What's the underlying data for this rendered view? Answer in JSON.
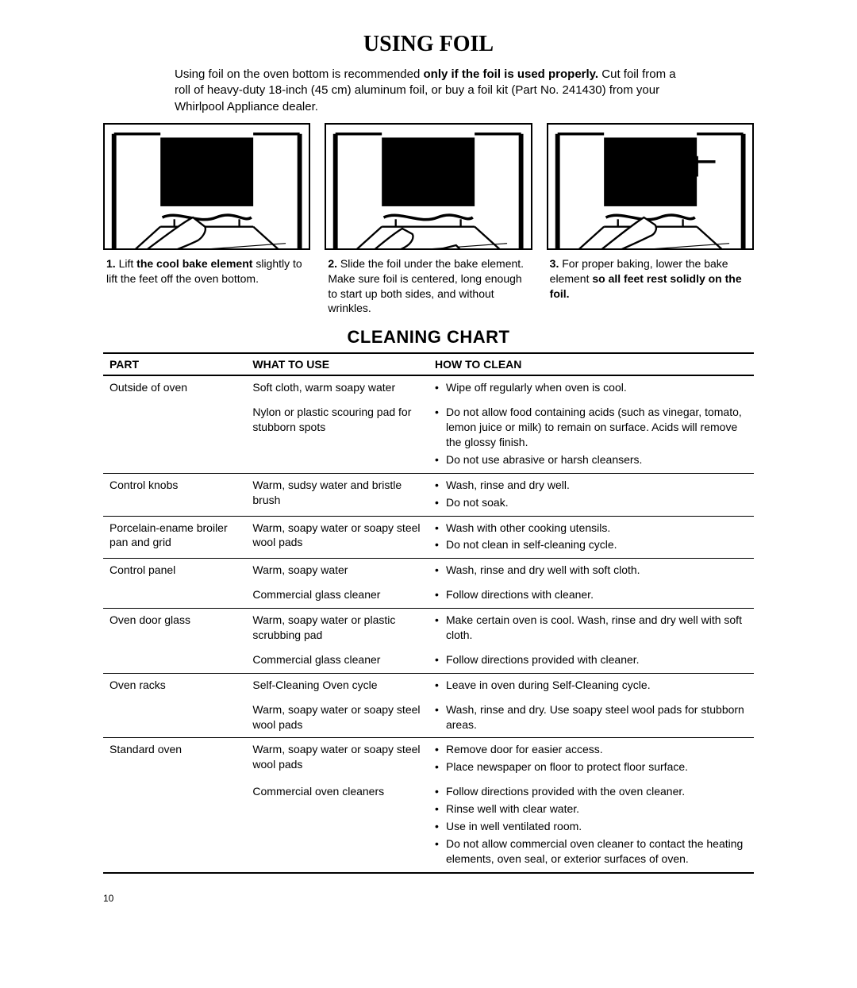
{
  "page": {
    "title": "USING FOIL",
    "intro_pre": "Using foil on the oven bottom is recommended ",
    "intro_bold": "only if the foil is used properly.",
    "intro_post": " Cut foil from a roll of heavy-duty 18-inch (45 cm) aluminum foil, or buy a foil kit (Part No. 241430) from your Whirlpool Appliance dealer.",
    "section2_title": "CLEANING CHART",
    "page_number": "10"
  },
  "figures": [
    {
      "num": "1.",
      "pre": " Lift ",
      "bold": "the cool bake element",
      "post": " slightly to lift the feet off the oven bottom.",
      "icon": "fig1"
    },
    {
      "num": "2.",
      "pre": " Slide the foil under the bake element. Make sure foil is centered, long enough to start up both sides, and without wrinkles.",
      "bold": "",
      "post": "",
      "icon": "fig2"
    },
    {
      "num": "3.",
      "pre": " For proper baking, lower the bake element ",
      "bold": "so all feet rest solidly on the foil.",
      "post": "",
      "icon": "fig3"
    }
  ],
  "table": {
    "headers": {
      "part": "PART",
      "what": "WHAT TO USE",
      "how": "HOW TO CLEAN"
    },
    "rows": [
      {
        "sep": true,
        "part": "Outside of oven",
        "whats": [
          "Soft cloth, warm soapy water",
          "Nylon or plastic scouring pad for stubborn spots"
        ],
        "hows": [
          [
            "Wipe off regularly when oven is cool."
          ],
          [
            "Do not allow food containing acids (such as vinegar, tomato, lemon juice or milk) to remain on surface. Acids will remove the glossy finish.",
            "Do not use abrasive or harsh cleansers."
          ]
        ]
      },
      {
        "sep": true,
        "part": "Control knobs",
        "whats": [
          "Warm, sudsy water and bristle brush"
        ],
        "hows": [
          [
            "Wash, rinse and dry well.",
            "Do not soak."
          ]
        ]
      },
      {
        "sep": true,
        "part": "Porcelain-ename broiler pan and grid",
        "whats": [
          "Warm, soapy water or soapy steel wool pads"
        ],
        "hows": [
          [
            "Wash with other cooking utensils.",
            "Do not clean in self-cleaning cycle."
          ]
        ]
      },
      {
        "sep": true,
        "part": "Control panel",
        "whats": [
          "Warm, soapy water",
          "Commercial glass cleaner"
        ],
        "hows": [
          [
            "Wash, rinse and dry well with soft cloth."
          ],
          [
            "Follow directions with cleaner."
          ]
        ]
      },
      {
        "sep": true,
        "part": "Oven door glass",
        "whats": [
          "Warm, soapy water or plastic scrubbing pad",
          "Commercial glass cleaner"
        ],
        "hows": [
          [
            "Make certain oven is cool. Wash, rinse and dry well with soft cloth."
          ],
          [
            "Follow directions provided with cleaner."
          ]
        ]
      },
      {
        "sep": true,
        "part": "Oven racks",
        "whats": [
          "Self-Cleaning Oven cycle",
          "Warm, soapy water or soapy steel wool pads"
        ],
        "hows": [
          [
            "Leave in oven during Self-Cleaning cycle."
          ],
          [
            "Wash, rinse and dry. Use soapy steel wool pads for stubborn areas."
          ]
        ]
      },
      {
        "sep": true,
        "last": true,
        "part": "Standard oven",
        "whats": [
          "Warm, soapy water or soapy steel wool pads",
          "Commercial oven cleaners"
        ],
        "hows": [
          [
            "Remove door for easier access.",
            "Place newspaper on floor to protect floor surface."
          ],
          [
            "Follow directions provided with the oven cleaner.",
            "Rinse well with clear water.",
            "Use in well ventilated room.",
            "Do not allow commercial oven cleaner to contact the heating elements, oven seal, or exterior surfaces of oven."
          ]
        ]
      }
    ]
  }
}
